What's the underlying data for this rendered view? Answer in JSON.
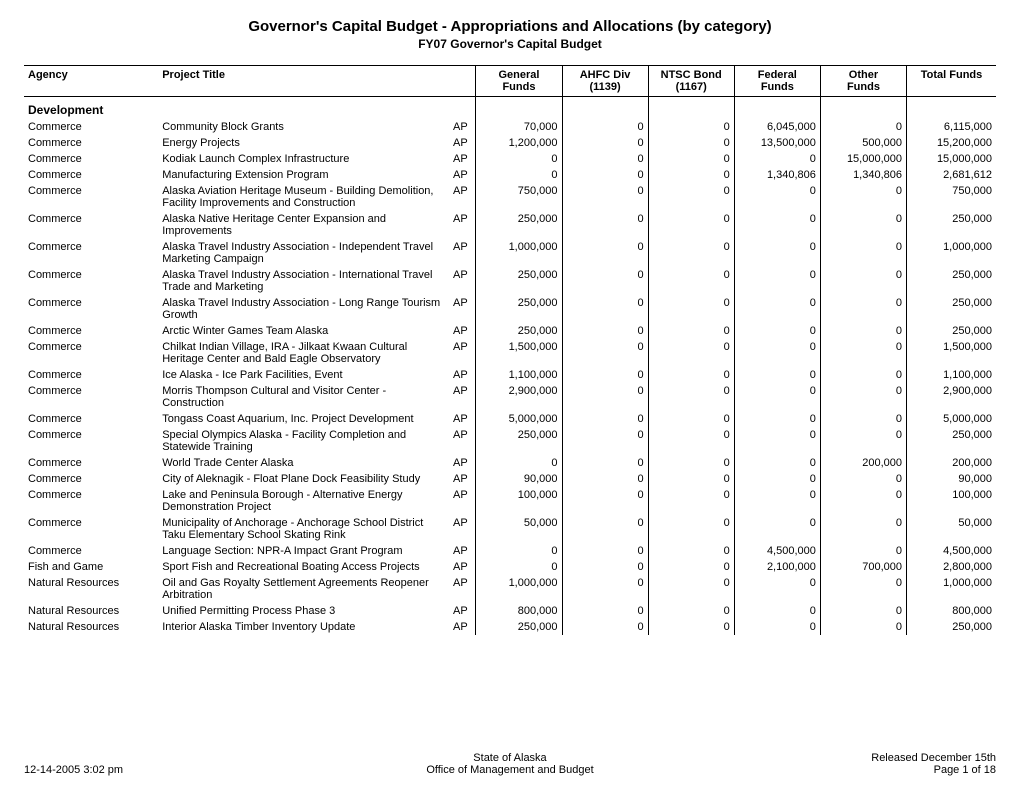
{
  "header": {
    "title": "Governor's Capital Budget - Appropriations and Allocations (by category)",
    "subtitle": "FY07 Governor's Capital Budget"
  },
  "columns": {
    "agency": "Agency",
    "project_title": "Project Title",
    "general_l1": "General",
    "general_l2": "Funds",
    "ahfc_l1": "AHFC Div",
    "ahfc_l2": "(1139)",
    "ntsc_l1": "NTSC Bond",
    "ntsc_l2": "(1167)",
    "federal_l1": "Federal",
    "federal_l2": "Funds",
    "other_l1": "Other",
    "other_l2": "Funds",
    "total": "Total Funds"
  },
  "section": "Development",
  "type_code": "AP",
  "rows": [
    {
      "agency": "Commerce",
      "title": "Community Block Grants",
      "general": "70,000",
      "ahfc": "0",
      "ntsc": "0",
      "federal": "6,045,000",
      "other": "0",
      "total": "6,115,000"
    },
    {
      "agency": "Commerce",
      "title": "Energy Projects",
      "general": "1,200,000",
      "ahfc": "0",
      "ntsc": "0",
      "federal": "13,500,000",
      "other": "500,000",
      "total": "15,200,000"
    },
    {
      "agency": "Commerce",
      "title": "Kodiak Launch Complex Infrastructure",
      "general": "0",
      "ahfc": "0",
      "ntsc": "0",
      "federal": "0",
      "other": "15,000,000",
      "total": "15,000,000"
    },
    {
      "agency": "Commerce",
      "title": "Manufacturing Extension Program",
      "general": "0",
      "ahfc": "0",
      "ntsc": "0",
      "federal": "1,340,806",
      "other": "1,340,806",
      "total": "2,681,612"
    },
    {
      "agency": "Commerce",
      "title": "Alaska Aviation Heritage Museum - Building Demolition, Facility Improvements and Construction",
      "general": "750,000",
      "ahfc": "0",
      "ntsc": "0",
      "federal": "0",
      "other": "0",
      "total": "750,000"
    },
    {
      "agency": "Commerce",
      "title": "Alaska Native Heritage Center Expansion and Improvements",
      "general": "250,000",
      "ahfc": "0",
      "ntsc": "0",
      "federal": "0",
      "other": "0",
      "total": "250,000"
    },
    {
      "agency": "Commerce",
      "title": "Alaska Travel Industry Association - Independent Travel Marketing Campaign",
      "general": "1,000,000",
      "ahfc": "0",
      "ntsc": "0",
      "federal": "0",
      "other": "0",
      "total": "1,000,000"
    },
    {
      "agency": "Commerce",
      "title": "Alaska Travel Industry Association - International Travel Trade and Marketing",
      "general": "250,000",
      "ahfc": "0",
      "ntsc": "0",
      "federal": "0",
      "other": "0",
      "total": "250,000"
    },
    {
      "agency": "Commerce",
      "title": "Alaska Travel Industry Association - Long Range Tourism Growth",
      "general": "250,000",
      "ahfc": "0",
      "ntsc": "0",
      "federal": "0",
      "other": "0",
      "total": "250,000"
    },
    {
      "agency": "Commerce",
      "title": "Arctic Winter Games Team Alaska",
      "general": "250,000",
      "ahfc": "0",
      "ntsc": "0",
      "federal": "0",
      "other": "0",
      "total": "250,000"
    },
    {
      "agency": "Commerce",
      "title": "Chilkat Indian Village, IRA - Jilkaat Kwaan Cultural Heritage Center and Bald Eagle Observatory",
      "general": "1,500,000",
      "ahfc": "0",
      "ntsc": "0",
      "federal": "0",
      "other": "0",
      "total": "1,500,000"
    },
    {
      "agency": "Commerce",
      "title": "Ice Alaska - Ice Park Facilities, Event",
      "general": "1,100,000",
      "ahfc": "0",
      "ntsc": "0",
      "federal": "0",
      "other": "0",
      "total": "1,100,000"
    },
    {
      "agency": "Commerce",
      "title": "Morris Thompson Cultural and Visitor Center - Construction",
      "general": "2,900,000",
      "ahfc": "0",
      "ntsc": "0",
      "federal": "0",
      "other": "0",
      "total": "2,900,000"
    },
    {
      "agency": "Commerce",
      "title": "Tongass Coast Aquarium, Inc. Project Development",
      "general": "5,000,000",
      "ahfc": "0",
      "ntsc": "0",
      "federal": "0",
      "other": "0",
      "total": "5,000,000"
    },
    {
      "agency": "Commerce",
      "title": "Special Olympics Alaska - Facility Completion and Statewide Training",
      "general": "250,000",
      "ahfc": "0",
      "ntsc": "0",
      "federal": "0",
      "other": "0",
      "total": "250,000"
    },
    {
      "agency": "Commerce",
      "title": "World Trade Center Alaska",
      "general": "0",
      "ahfc": "0",
      "ntsc": "0",
      "federal": "0",
      "other": "200,000",
      "total": "200,000"
    },
    {
      "agency": "Commerce",
      "title": "City of Aleknagik - Float Plane Dock Feasibility Study",
      "general": "90,000",
      "ahfc": "0",
      "ntsc": "0",
      "federal": "0",
      "other": "0",
      "total": "90,000"
    },
    {
      "agency": "Commerce",
      "title": "Lake and Peninsula Borough - Alternative Energy Demonstration Project",
      "general": "100,000",
      "ahfc": "0",
      "ntsc": "0",
      "federal": "0",
      "other": "0",
      "total": "100,000"
    },
    {
      "agency": "Commerce",
      "title": "Municipality of Anchorage - Anchorage School District Taku Elementary School Skating Rink",
      "general": "50,000",
      "ahfc": "0",
      "ntsc": "0",
      "federal": "0",
      "other": "0",
      "total": "50,000"
    },
    {
      "agency": "Commerce",
      "title": "Language Section: NPR-A Impact Grant Program",
      "general": "0",
      "ahfc": "0",
      "ntsc": "0",
      "federal": "4,500,000",
      "other": "0",
      "total": "4,500,000"
    },
    {
      "agency": "Fish and Game",
      "title": "Sport Fish and Recreational Boating Access Projects",
      "general": "0",
      "ahfc": "0",
      "ntsc": "0",
      "federal": "2,100,000",
      "other": "700,000",
      "total": "2,800,000"
    },
    {
      "agency": "Natural Resources",
      "title": "Oil and Gas Royalty Settlement Agreements Reopener Arbitration",
      "general": "1,000,000",
      "ahfc": "0",
      "ntsc": "0",
      "federal": "0",
      "other": "0",
      "total": "1,000,000"
    },
    {
      "agency": "Natural Resources",
      "title": "Unified Permitting Process Phase 3",
      "general": "800,000",
      "ahfc": "0",
      "ntsc": "0",
      "federal": "0",
      "other": "0",
      "total": "800,000"
    },
    {
      "agency": "Natural Resources",
      "title": "Interior Alaska Timber Inventory Update",
      "general": "250,000",
      "ahfc": "0",
      "ntsc": "0",
      "federal": "0",
      "other": "0",
      "total": "250,000"
    }
  ],
  "footer": {
    "left": "12-14-2005 3:02 pm",
    "center_l1": "State of Alaska",
    "center_l2": "Office of Management and Budget",
    "right_l1": "Released December 15th",
    "right_l2": "Page 1 of 18"
  }
}
